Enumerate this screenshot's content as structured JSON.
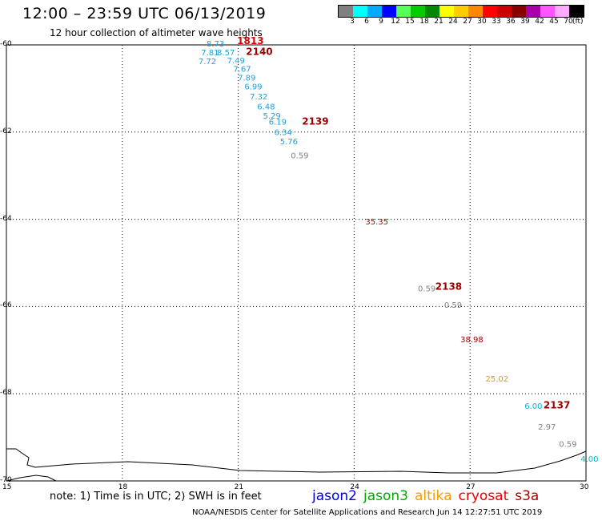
{
  "header": {
    "title": "12:00 – 23:59 UTC 06/13/2019",
    "subtitle": "12 hour collection of altimeter wave heights"
  },
  "colorbar": {
    "colors": [
      "#808080",
      "#00ffff",
      "#00aaff",
      "#0000ff",
      "#55ff55",
      "#00cc00",
      "#008800",
      "#ffff00",
      "#ffcc00",
      "#ff8800",
      "#ff0000",
      "#cc0000",
      "#880000",
      "#aa00aa",
      "#ff55ff",
      "#ffaaff",
      "#000000"
    ],
    "labels": [
      "3",
      "6",
      "9",
      "12",
      "15",
      "18",
      "21",
      "24",
      "27",
      "30",
      "33",
      "36",
      "39",
      "42",
      "45",
      "70"
    ],
    "unit": "(ft)"
  },
  "chart_data": {
    "type": "scatter",
    "title": "12:00 – 23:59 UTC 06/13/2019",
    "subtitle": "12 hour collection of altimeter wave heights",
    "xlim": [
      15,
      30
    ],
    "ylim": [
      -70,
      -60
    ],
    "xticks": [
      "15",
      "18",
      "21",
      "24",
      "27",
      "30"
    ],
    "yticks": [
      "-60",
      "-62",
      "-64",
      "-66",
      "-68",
      "-70"
    ],
    "grid": true,
    "points": [
      {
        "x": 20.18,
        "y": -60.04,
        "label": "8.73",
        "color": "#1ea0d8"
      },
      {
        "x": 20.04,
        "y": -60.24,
        "label": "7.81",
        "color": "#1ea0d8"
      },
      {
        "x": 20.45,
        "y": -60.24,
        "label": "8.57",
        "color": "#1ea0d8"
      },
      {
        "x": 19.97,
        "y": -60.44,
        "label": "7.72",
        "color": "#1ea0d8"
      },
      {
        "x": 20.71,
        "y": -60.42,
        "label": "7.49",
        "color": "#1ea0d8"
      },
      {
        "x": 20.87,
        "y": -60.62,
        "label": "7.67",
        "color": "#1ea0d8"
      },
      {
        "x": 20.99,
        "y": -60.82,
        "label": "7.89",
        "color": "#1ea0d8"
      },
      {
        "x": 21.16,
        "y": -61.02,
        "label": "6.99",
        "color": "#1ea0d8"
      },
      {
        "x": 21.3,
        "y": -61.25,
        "label": "7.32",
        "color": "#1ea0d8"
      },
      {
        "x": 21.49,
        "y": -61.48,
        "label": "6.48",
        "color": "#1ea0d8"
      },
      {
        "x": 21.64,
        "y": -61.69,
        "label": "5.29",
        "color": "#1ea0d8"
      },
      {
        "x": 21.79,
        "y": -61.83,
        "label": "6.19",
        "color": "#1ea0d8"
      },
      {
        "x": 21.93,
        "y": -62.07,
        "label": "6.34",
        "color": "#1ea0d8"
      },
      {
        "x": 22.08,
        "y": -62.28,
        "label": "5.76",
        "color": "#1ea0d8"
      },
      {
        "x": 22.36,
        "y": -62.6,
        "label": "0.59",
        "color": "#808080"
      },
      {
        "x": 24.29,
        "y": -64.12,
        "label": "35.35",
        "color": "#990000"
      },
      {
        "x": 25.65,
        "y": -65.65,
        "label": "0.59",
        "color": "#808080"
      },
      {
        "x": 26.33,
        "y": -66.03,
        "label": "0.59",
        "color": "#808080"
      },
      {
        "x": 26.75,
        "y": -66.82,
        "label": "38.98",
        "color": "#990000"
      },
      {
        "x": 27.4,
        "y": -67.72,
        "label": "25.02",
        "color": "#d8a000"
      },
      {
        "x": 28.41,
        "y": -68.35,
        "label": "6.00",
        "color": "#00b8c8"
      },
      {
        "x": 28.76,
        "y": -68.82,
        "label": "2.97",
        "color": "#808080"
      },
      {
        "x": 29.3,
        "y": -69.22,
        "label": "0.59",
        "color": "#808080"
      },
      {
        "x": 29.86,
        "y": -69.56,
        "label": "4.00",
        "color": "#00b8c8"
      }
    ],
    "pass_labels": [
      {
        "x": 20.97,
        "y": -59.98,
        "label": "1813",
        "color": "#dd0000"
      },
      {
        "x": 21.2,
        "y": -60.23,
        "label": "2140",
        "color": "#990000"
      },
      {
        "x": 22.65,
        "y": -61.83,
        "label": "2139",
        "color": "#990000"
      },
      {
        "x": 26.1,
        "y": -65.62,
        "label": "2138",
        "color": "#990000"
      },
      {
        "x": 28.9,
        "y": -68.34,
        "label": "2137",
        "color": "#990000"
      }
    ]
  },
  "footer": {
    "note": "note:  1)  Time is in UTC;  2)  SWH is in feet",
    "legend": [
      {
        "name": "jason2",
        "color": "#0000dd"
      },
      {
        "name": "jason3",
        "color": "#00aa00"
      },
      {
        "name": "altika",
        "color": "#ff9900"
      },
      {
        "name": "cryosat",
        "color": "#ee0000"
      },
      {
        "name": "s3a",
        "color": "#aa0000"
      }
    ],
    "credit": "NOAA/NESDIS Center for Satellite Applications and Research     Jun 14 12:27:51 UTC 2019"
  }
}
